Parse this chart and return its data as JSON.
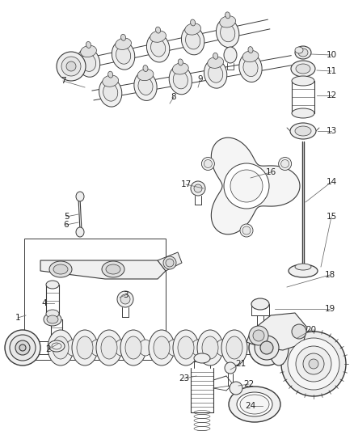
{
  "bg": "#ffffff",
  "lc": "#3a3a3a",
  "lc2": "#555555",
  "fig_w": 4.38,
  "fig_h": 5.33,
  "dpi": 100,
  "label_fs": 7.5,
  "label_color": "#222222"
}
